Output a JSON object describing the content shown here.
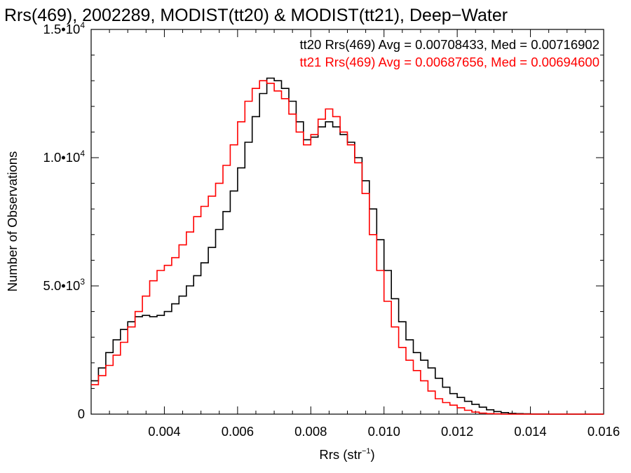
{
  "chart_data": {
    "type": "line",
    "title": "Rrs(469), 2002289, MODIST(tt20) & MODIST(tt21), Deep−Water",
    "xlabel": {
      "base": "Rrs (str",
      "sup": "−1",
      "end": ")"
    },
    "ylabel": "Number of Observations",
    "xlim": [
      0.002,
      0.016
    ],
    "ylim": [
      0,
      15000
    ],
    "x_ticks": [
      {
        "value": 0.004,
        "label": "0.004"
      },
      {
        "value": 0.006,
        "label": "0.006"
      },
      {
        "value": 0.008,
        "label": "0.008"
      },
      {
        "value": 0.01,
        "label": "0.010"
      },
      {
        "value": 0.012,
        "label": "0.012"
      },
      {
        "value": 0.014,
        "label": "0.014"
      },
      {
        "value": 0.016,
        "label": "0.016"
      }
    ],
    "y_ticks": [
      {
        "value": 0,
        "label": "0",
        "sup": ""
      },
      {
        "value": 5000,
        "label": "5.0•10",
        "sup": "3"
      },
      {
        "value": 10000,
        "label": "1.0•10",
        "sup": "4"
      },
      {
        "value": 15000,
        "label": "1.5•10",
        "sup": "4"
      }
    ],
    "legend_placement": "top-right",
    "series": [
      {
        "name": "tt20 Rrs(469) Avg = 0.00708433, Med = 0.00716902",
        "color": "#000000",
        "x": [
          0.002,
          0.0022,
          0.0024,
          0.0026,
          0.0028,
          0.003,
          0.0032,
          0.0034,
          0.0036,
          0.0038,
          0.004,
          0.0042,
          0.0044,
          0.0046,
          0.0048,
          0.005,
          0.0052,
          0.0054,
          0.0056,
          0.0058,
          0.006,
          0.0062,
          0.0064,
          0.0066,
          0.0068,
          0.007,
          0.0072,
          0.0074,
          0.0076,
          0.0078,
          0.008,
          0.0082,
          0.0084,
          0.0086,
          0.0088,
          0.009,
          0.0092,
          0.0094,
          0.0096,
          0.0098,
          0.01,
          0.0102,
          0.0104,
          0.0106,
          0.0108,
          0.011,
          0.0112,
          0.0114,
          0.0116,
          0.0118,
          0.012,
          0.0122,
          0.0124,
          0.0126,
          0.0128,
          0.013,
          0.0132,
          0.0134,
          0.0136,
          0.0138,
          0.014,
          0.0145,
          0.015,
          0.016
        ],
        "y": [
          1300,
          1800,
          2400,
          2900,
          3300,
          3600,
          3800,
          3850,
          3800,
          3850,
          4000,
          4300,
          4600,
          5000,
          5400,
          5900,
          6500,
          7200,
          7900,
          8700,
          9600,
          10600,
          11600,
          12500,
          13100,
          13000,
          12700,
          12200,
          11400,
          10700,
          10800,
          11200,
          11400,
          11200,
          10900,
          10600,
          10000,
          9100,
          8000,
          6800,
          5600,
          4500,
          3600,
          2900,
          2400,
          2100,
          1800,
          1400,
          1050,
          800,
          650,
          500,
          380,
          270,
          170,
          100,
          60,
          30,
          20,
          10,
          5,
          0,
          0,
          0
        ]
      },
      {
        "name": "tt21 Rrs(469) Avg = 0.00687656, Med = 0.00694600",
        "color": "#ff0000",
        "x": [
          0.002,
          0.0022,
          0.0024,
          0.0026,
          0.0028,
          0.003,
          0.0032,
          0.0034,
          0.0036,
          0.0038,
          0.004,
          0.0042,
          0.0044,
          0.0046,
          0.0048,
          0.005,
          0.0052,
          0.0054,
          0.0056,
          0.0058,
          0.006,
          0.0062,
          0.0064,
          0.0066,
          0.0068,
          0.007,
          0.0072,
          0.0074,
          0.0076,
          0.0078,
          0.008,
          0.0082,
          0.0084,
          0.0086,
          0.0088,
          0.009,
          0.0092,
          0.0094,
          0.0096,
          0.0098,
          0.01,
          0.0102,
          0.0104,
          0.0106,
          0.0108,
          0.011,
          0.0112,
          0.0114,
          0.0116,
          0.0118,
          0.012,
          0.0122,
          0.0124,
          0.0126,
          0.0128,
          0.013,
          0.0132,
          0.0134,
          0.0136,
          0.0138,
          0.014,
          0.0145,
          0.015,
          0.016
        ],
        "y": [
          1150,
          1500,
          1900,
          2300,
          2800,
          3400,
          4000,
          4600,
          5200,
          5600,
          5800,
          6100,
          6600,
          7100,
          7700,
          8100,
          8500,
          9000,
          9700,
          10500,
          11400,
          12200,
          12700,
          13000,
          12900,
          12600,
          12300,
          11700,
          11000,
          10500,
          10900,
          11500,
          11900,
          11600,
          11000,
          10500,
          9800,
          8600,
          7000,
          5600,
          4400,
          3400,
          2600,
          2100,
          1700,
          1300,
          900,
          600,
          450,
          350,
          250,
          150,
          80,
          40,
          20,
          10,
          0,
          0,
          0,
          0,
          0,
          0,
          0,
          0
        ]
      }
    ]
  }
}
